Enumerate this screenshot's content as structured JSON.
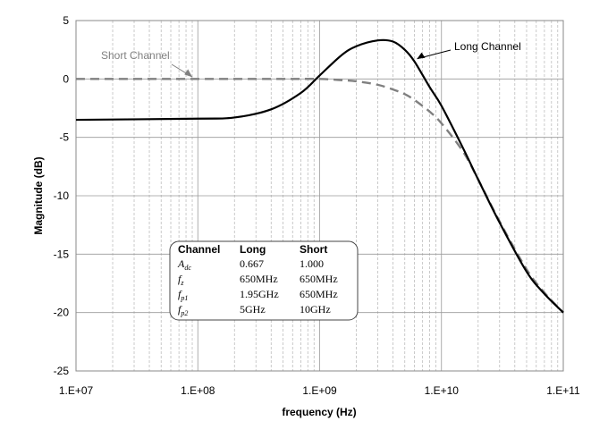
{
  "chart_data": {
    "type": "line",
    "title": "",
    "xlabel": "frequency (Hz)",
    "ylabel": "Magnitude (dB)",
    "xscale": "log",
    "xlim": [
      10000000.0,
      100000000000.0
    ],
    "ylim": [
      -25,
      5
    ],
    "xticks": [
      {
        "value": 10000000.0,
        "label": "1.E+07"
      },
      {
        "value": 100000000.0,
        "label": "1.E+08"
      },
      {
        "value": 1000000000.0,
        "label": "1.E+09"
      },
      {
        "value": 10000000000.0,
        "label": "1.E+10"
      },
      {
        "value": 100000000000.0,
        "label": "1.E+11"
      }
    ],
    "yticks": [
      {
        "value": 5,
        "label": "5"
      },
      {
        "value": 0,
        "label": "0"
      },
      {
        "value": -5,
        "label": "-5"
      },
      {
        "value": -10,
        "label": "-10"
      },
      {
        "value": -15,
        "label": "-15"
      },
      {
        "value": -20,
        "label": "-20"
      },
      {
        "value": -25,
        "label": "-25"
      }
    ],
    "grid": {
      "major_horizontal": true,
      "major_vertical": true,
      "minor_vertical": true
    },
    "series": [
      {
        "name": "Long Channel",
        "color": "#000000",
        "style": "solid",
        "x": [
          10000000.0,
          100000000.0,
          200000000.0,
          400000000.0,
          700000000.0,
          1000000000.0,
          1500000000.0,
          2000000000.0,
          3000000000.0,
          4000000000.0,
          5000000000.0,
          6000000000.0,
          8000000000.0,
          10000000000.0,
          15000000000.0,
          20000000000.0,
          30000000000.0,
          50000000000.0,
          70000000000.0,
          100000000000.0
        ],
        "y": [
          -3.5,
          -3.4,
          -3.3,
          -2.6,
          -1.2,
          0.3,
          2.0,
          2.8,
          3.3,
          3.2,
          2.5,
          1.5,
          -0.7,
          -2.3,
          -5.9,
          -8.6,
          -12.3,
          -16.5,
          -18.4,
          -20.0
        ]
      },
      {
        "name": "Short Channel",
        "color": "#808080",
        "style": "dashed",
        "x": [
          10000000.0,
          100000000.0,
          500000000.0,
          1000000000.0,
          1500000000.0,
          2000000000.0,
          3000000000.0,
          4000000000.0,
          5000000000.0,
          6000000000.0,
          8000000000.0,
          10000000000.0,
          15000000000.0,
          20000000000.0,
          30000000000.0,
          50000000000.0,
          70000000000.0,
          100000000000.0
        ],
        "y": [
          0.0,
          0.0,
          0.0,
          0.0,
          -0.1,
          -0.2,
          -0.5,
          -0.9,
          -1.3,
          -1.8,
          -2.8,
          -3.8,
          -6.2,
          -8.6,
          -12.2,
          -16.3,
          -18.3,
          -20.0
        ]
      }
    ],
    "annotations": [
      {
        "text": "Short Channel",
        "x": 100000000.0,
        "y": 0,
        "color": "#808080",
        "target": "Short Channel"
      },
      {
        "text": "Long Channel",
        "x": 6000000000.0,
        "y": 1.5,
        "color": "#000000",
        "target": "Long Channel"
      }
    ],
    "table": {
      "headers": [
        "Channel",
        "Long",
        "Short"
      ],
      "rows": [
        {
          "param": "A",
          "sub": "dc",
          "long": "0.667",
          "short": "1.000"
        },
        {
          "param": "f",
          "sub": "z",
          "long": "650MHz",
          "short": "650MHz"
        },
        {
          "param": "f",
          "sub": "p1",
          "long": "1.95GHz",
          "short": "650MHz"
        },
        {
          "param": "f",
          "sub": "p2",
          "long": "5GHz",
          "short": "10GHz"
        }
      ]
    }
  }
}
